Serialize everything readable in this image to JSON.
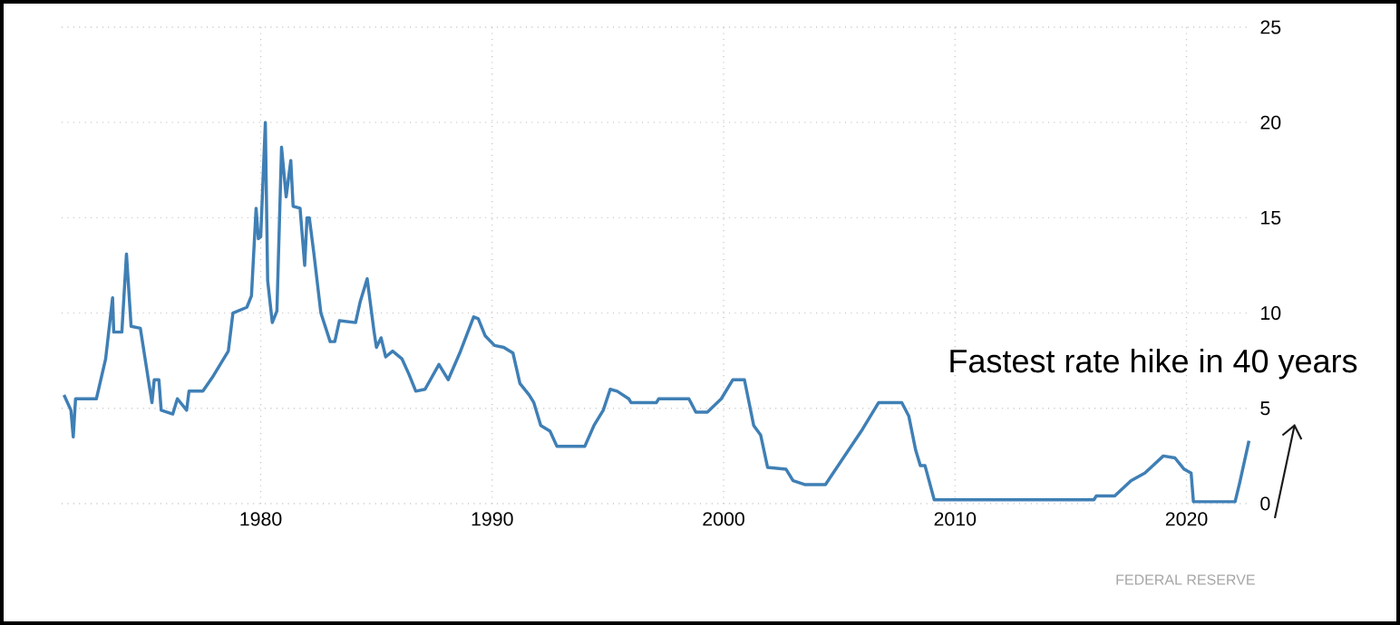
{
  "chart_data": {
    "type": "line",
    "x": [
      1971.5,
      1971.8,
      1971.9,
      1972.0,
      1972.9,
      1973.3,
      1973.6,
      1973.65,
      1974.0,
      1974.2,
      1974.4,
      1974.8,
      1975.3,
      1975.4,
      1975.6,
      1975.7,
      1976.2,
      1976.4,
      1976.8,
      1976.9,
      1977.5,
      1977.9,
      1978.6,
      1978.8,
      1979.4,
      1979.6,
      1979.8,
      1979.9,
      1980.0,
      1980.2,
      1980.3,
      1980.5,
      1980.7,
      1980.9,
      1981.1,
      1981.3,
      1981.4,
      1981.7,
      1981.9,
      1982.0,
      1982.1,
      1982.3,
      1982.6,
      1983.0,
      1983.2,
      1983.4,
      1984.1,
      1984.3,
      1984.6,
      1984.9,
      1985.0,
      1985.2,
      1985.4,
      1985.7,
      1986.1,
      1986.4,
      1986.7,
      1987.1,
      1987.7,
      1988.1,
      1988.6,
      1989.2,
      1989.4,
      1989.7,
      1990.1,
      1990.5,
      1990.9,
      1991.2,
      1991.6,
      1991.8,
      1992.1,
      1992.5,
      1992.8,
      1994.0,
      1994.4,
      1994.8,
      1995.1,
      1995.4,
      1995.9,
      1996.0,
      1997.1,
      1997.2,
      1998.5,
      1998.8,
      1999.3,
      1999.9,
      2000.4,
      2000.9,
      2001.3,
      2001.6,
      2001.9,
      2002.7,
      2003.0,
      2003.5,
      2004.4,
      2006.0,
      2006.7,
      2007.7,
      2008.0,
      2008.3,
      2008.5,
      2008.7,
      2009.1,
      2016.0,
      2016.1,
      2016.9,
      2017.6,
      2018.2,
      2019.0,
      2019.5,
      2019.9,
      2020.2,
      2020.3,
      2022.1,
      2022.3,
      2022.7
    ],
    "series": [
      {
        "color": "#3f7fb5",
        "values": [
          5.7,
          4.9,
          3.5,
          5.5,
          5.5,
          7.6,
          10.8,
          9.0,
          9.0,
          13.1,
          9.3,
          9.2,
          5.3,
          6.5,
          6.5,
          4.9,
          4.7,
          5.5,
          4.9,
          5.9,
          5.9,
          6.6,
          8.0,
          10.0,
          10.3,
          10.9,
          15.5,
          13.9,
          14.0,
          20.0,
          11.7,
          9.5,
          10.1,
          18.7,
          16.1,
          18.0,
          15.6,
          15.5,
          12.5,
          15.0,
          15.0,
          13.1,
          10.0,
          8.5,
          8.5,
          9.6,
          9.5,
          10.6,
          11.8,
          9.0,
          8.2,
          8.7,
          7.7,
          8.0,
          7.6,
          6.8,
          5.9,
          6.0,
          7.3,
          6.5,
          7.9,
          9.8,
          9.7,
          8.8,
          8.3,
          8.2,
          7.9,
          6.3,
          5.7,
          5.3,
          4.1,
          3.8,
          3.0,
          3.0,
          4.1,
          4.9,
          6.0,
          5.9,
          5.5,
          5.3,
          5.3,
          5.5,
          5.5,
          4.8,
          4.8,
          5.5,
          6.5,
          6.5,
          4.1,
          3.6,
          1.9,
          1.8,
          1.2,
          1.0,
          1.0,
          3.9,
          5.3,
          5.3,
          4.6,
          2.8,
          2.0,
          2.0,
          0.2,
          0.2,
          0.4,
          0.4,
          1.2,
          1.6,
          2.5,
          2.4,
          1.8,
          1.6,
          0.1,
          0.1,
          1.1,
          3.3
        ]
      }
    ],
    "xlim": [
      1971.4,
      2022.8
    ],
    "xticks": [
      1980,
      1990,
      2000,
      2010,
      2020
    ],
    "ylim": [
      0,
      25
    ],
    "yticks": [
      0,
      5,
      10,
      15,
      20,
      25
    ],
    "grid": true,
    "annotations": [
      "Fastest rate hike in 40 years",
      "FEDERAL RESERVE"
    ]
  }
}
